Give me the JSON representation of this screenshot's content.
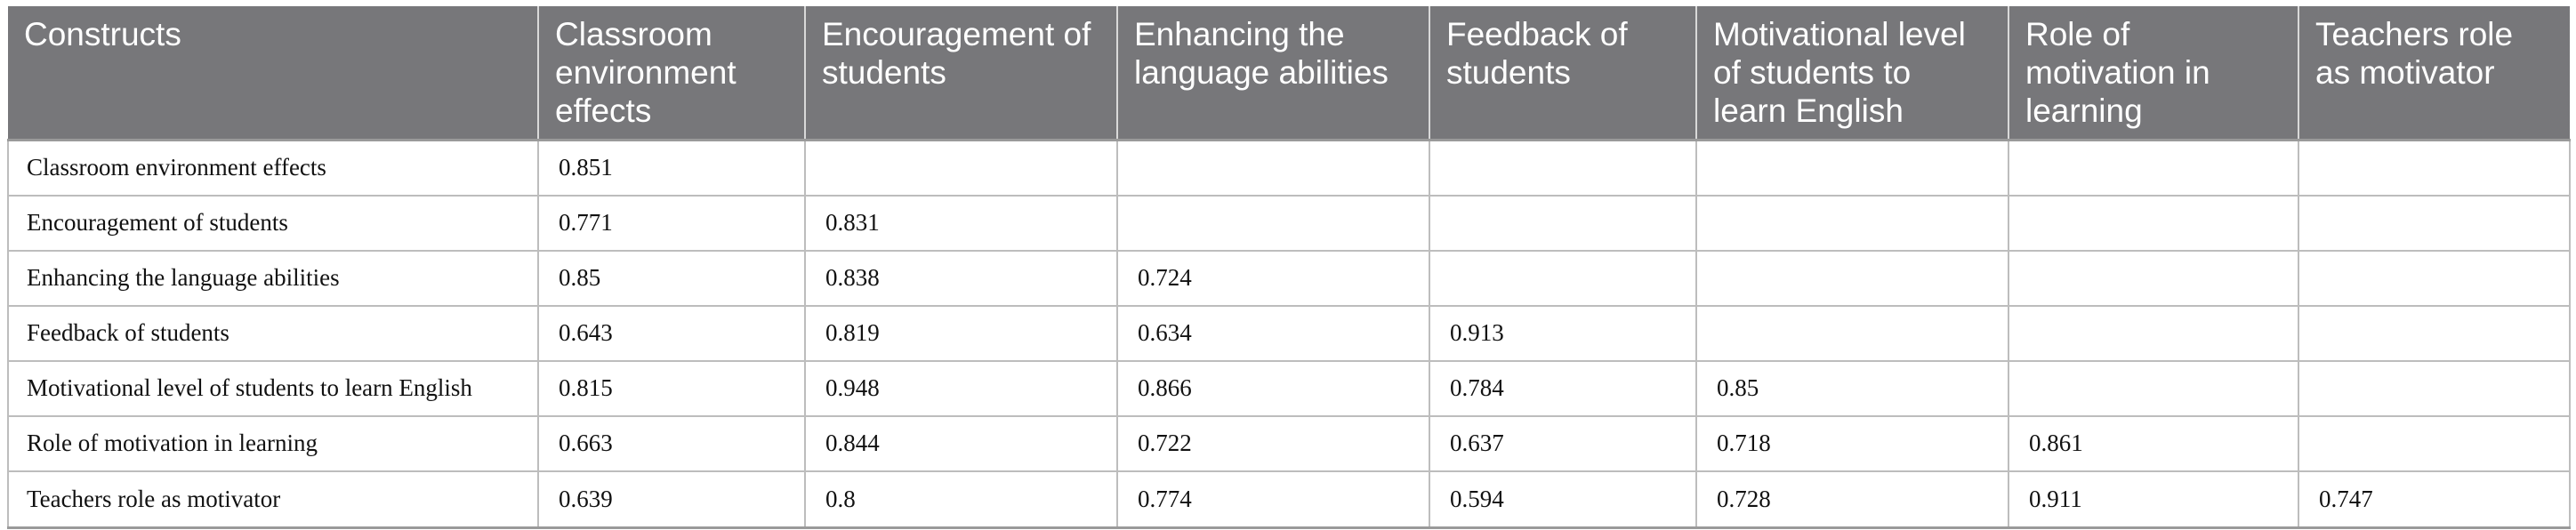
{
  "table": {
    "headers": [
      "Constructs",
      "Classroom environment effects",
      "Encouragement of students",
      "Enhancing the language abilities",
      "Feedback of students",
      "Motivational level of students to learn English",
      "Role of motivation in learning",
      "Teachers role as motivator"
    ],
    "rows": [
      [
        "Classroom environment effects",
        "0.851",
        "",
        "",
        "",
        "",
        "",
        ""
      ],
      [
        "Encouragement of students",
        "0.771",
        "0.831",
        "",
        "",
        "",
        "",
        ""
      ],
      [
        "Enhancing the language abilities",
        "0.85",
        "0.838",
        "0.724",
        "",
        "",
        "",
        ""
      ],
      [
        "Feedback of students",
        "0.643",
        "0.819",
        "0.634",
        "0.913",
        "",
        "",
        ""
      ],
      [
        "Motivational level of students to learn English",
        "0.815",
        "0.948",
        "0.866",
        "0.784",
        "0.85",
        "",
        ""
      ],
      [
        "Role of motivation in learning",
        "0.663",
        "0.844",
        "0.722",
        "0.637",
        "0.718",
        "0.861",
        ""
      ],
      [
        "Teachers role as motivator",
        "0.639",
        "0.8",
        "0.774",
        "0.594",
        "0.728",
        "0.911",
        "0.747"
      ]
    ]
  },
  "colors": {
    "header_bg": "#77777a",
    "header_text": "#ffffff",
    "grid_line": "#bdbdbd",
    "body_text": "#111111"
  }
}
